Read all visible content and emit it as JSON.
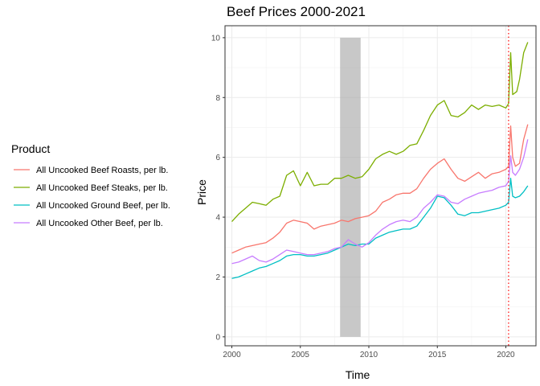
{
  "chart_data": {
    "type": "line",
    "title": "Beef Prices 2000-2021",
    "xlabel": "Time",
    "ylabel": "Price",
    "xlim": [
      1999.5,
      2022.2
    ],
    "ylim": [
      -0.3,
      10.4
    ],
    "x_ticks": [
      2000,
      2005,
      2010,
      2015,
      2020
    ],
    "y_ticks": [
      0,
      2,
      4,
      6,
      8,
      10
    ],
    "grid": true,
    "legend": {
      "title": "Product",
      "placement": "left"
    },
    "recession_band": {
      "x_start": 2007.9,
      "x_end": 2009.4,
      "y_top": 10,
      "color": "#a6a6a6"
    },
    "vline": {
      "x": 2020.2,
      "color": "#ff0000",
      "style": "dotted"
    },
    "series": [
      {
        "name": "All Uncooked Beef Roasts, per lb.",
        "color": "#F8766D",
        "x": [
          2000,
          2000.5,
          2001,
          2001.5,
          2002,
          2002.5,
          2003,
          2003.5,
          2004,
          2004.5,
          2005,
          2005.5,
          2006,
          2006.5,
          2007,
          2007.5,
          2008,
          2008.5,
          2009,
          2009.5,
          2010,
          2010.5,
          2011,
          2011.5,
          2012,
          2012.5,
          2013,
          2013.5,
          2014,
          2014.5,
          2015,
          2015.5,
          2016,
          2016.5,
          2017,
          2017.5,
          2018,
          2018.5,
          2019,
          2019.5,
          2020,
          2020.2,
          2020.35,
          2020.5,
          2020.7,
          2021,
          2021.3,
          2021.6
        ],
        "y": [
          2.8,
          2.9,
          3.0,
          3.05,
          3.1,
          3.15,
          3.3,
          3.5,
          3.8,
          3.9,
          3.85,
          3.8,
          3.6,
          3.7,
          3.75,
          3.8,
          3.9,
          3.85,
          3.95,
          4.0,
          4.05,
          4.2,
          4.5,
          4.6,
          4.75,
          4.8,
          4.8,
          4.95,
          5.3,
          5.6,
          5.8,
          5.95,
          5.6,
          5.3,
          5.2,
          5.35,
          5.5,
          5.3,
          5.45,
          5.5,
          5.6,
          5.7,
          7.05,
          6.0,
          5.7,
          5.8,
          6.6,
          7.1
        ]
      },
      {
        "name": "All Uncooked Beef Steaks, per lb.",
        "color": "#7CAE00",
        "x": [
          2000,
          2000.5,
          2001,
          2001.5,
          2002,
          2002.5,
          2003,
          2003.5,
          2004,
          2004.5,
          2005,
          2005.5,
          2006,
          2006.5,
          2007,
          2007.5,
          2008,
          2008.5,
          2009,
          2009.5,
          2010,
          2010.5,
          2011,
          2011.5,
          2012,
          2012.5,
          2013,
          2013.5,
          2014,
          2014.5,
          2015,
          2015.5,
          2016,
          2016.5,
          2017,
          2017.5,
          2018,
          2018.5,
          2019,
          2019.5,
          2020,
          2020.2,
          2020.35,
          2020.5,
          2020.8,
          2021,
          2021.3,
          2021.6
        ],
        "y": [
          3.85,
          4.1,
          4.3,
          4.5,
          4.45,
          4.4,
          4.6,
          4.7,
          5.4,
          5.55,
          5.05,
          5.5,
          5.05,
          5.1,
          5.1,
          5.3,
          5.3,
          5.4,
          5.3,
          5.35,
          5.6,
          5.95,
          6.1,
          6.2,
          6.1,
          6.2,
          6.4,
          6.45,
          6.9,
          7.4,
          7.75,
          7.9,
          7.4,
          7.35,
          7.5,
          7.75,
          7.6,
          7.75,
          7.7,
          7.75,
          7.65,
          7.8,
          9.5,
          8.1,
          8.2,
          8.6,
          9.5,
          9.85
        ]
      },
      {
        "name": "All Uncooked Ground Beef, per lb.",
        "color": "#00BFC4",
        "x": [
          2000,
          2000.5,
          2001,
          2001.5,
          2002,
          2002.5,
          2003,
          2003.5,
          2004,
          2004.5,
          2005,
          2005.5,
          2006,
          2006.5,
          2007,
          2007.5,
          2008,
          2008.5,
          2009,
          2009.5,
          2010,
          2010.5,
          2011,
          2011.5,
          2012,
          2012.5,
          2013,
          2013.5,
          2014,
          2014.5,
          2015,
          2015.5,
          2016,
          2016.5,
          2017,
          2017.5,
          2018,
          2018.5,
          2019,
          2019.5,
          2020,
          2020.2,
          2020.35,
          2020.5,
          2020.7,
          2021,
          2021.3,
          2021.6
        ],
        "y": [
          1.95,
          2.0,
          2.1,
          2.2,
          2.3,
          2.35,
          2.45,
          2.55,
          2.7,
          2.75,
          2.75,
          2.7,
          2.7,
          2.75,
          2.8,
          2.9,
          3.0,
          3.1,
          3.05,
          3.1,
          3.1,
          3.3,
          3.4,
          3.5,
          3.55,
          3.6,
          3.6,
          3.7,
          4.0,
          4.3,
          4.7,
          4.65,
          4.4,
          4.1,
          4.05,
          4.15,
          4.15,
          4.2,
          4.25,
          4.3,
          4.4,
          4.5,
          5.3,
          4.7,
          4.65,
          4.7,
          4.85,
          5.05
        ]
      },
      {
        "name": "All Uncooked Other Beef, per lb.",
        "color": "#C77CFF",
        "x": [
          2000,
          2000.5,
          2001,
          2001.5,
          2002,
          2002.5,
          2003,
          2003.5,
          2004,
          2004.5,
          2005,
          2005.5,
          2006,
          2006.5,
          2007,
          2007.5,
          2008,
          2008.5,
          2009,
          2009.5,
          2010,
          2010.5,
          2011,
          2011.5,
          2012,
          2012.5,
          2013,
          2013.5,
          2014,
          2014.5,
          2015,
          2015.5,
          2016,
          2016.5,
          2017,
          2017.5,
          2018,
          2018.5,
          2019,
          2019.5,
          2020,
          2020.2,
          2020.35,
          2020.5,
          2020.7,
          2021,
          2021.3,
          2021.6
        ],
        "y": [
          2.45,
          2.5,
          2.6,
          2.7,
          2.55,
          2.5,
          2.6,
          2.75,
          2.9,
          2.85,
          2.8,
          2.75,
          2.75,
          2.8,
          2.85,
          2.95,
          3.0,
          3.25,
          3.1,
          3.0,
          3.15,
          3.4,
          3.6,
          3.75,
          3.85,
          3.9,
          3.85,
          4.0,
          4.3,
          4.5,
          4.75,
          4.7,
          4.5,
          4.45,
          4.6,
          4.7,
          4.8,
          4.85,
          4.9,
          5.0,
          5.05,
          5.2,
          6.05,
          5.5,
          5.4,
          5.6,
          6.0,
          6.6
        ]
      }
    ]
  }
}
